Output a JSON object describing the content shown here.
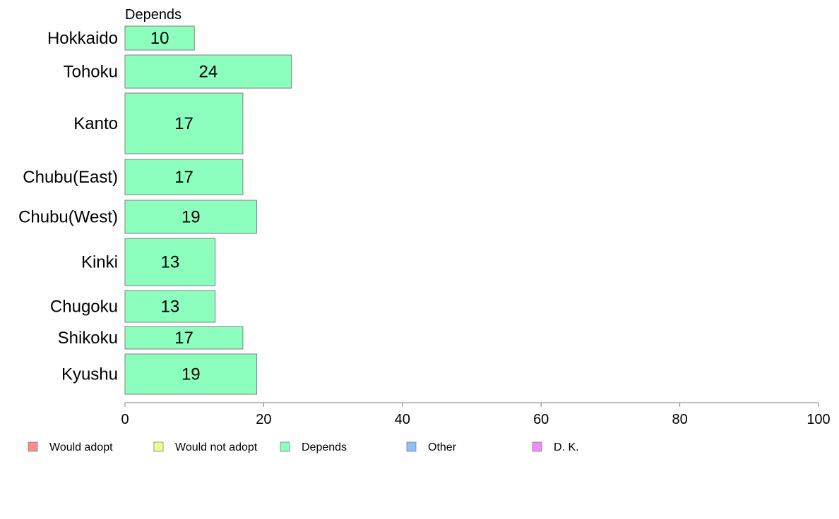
{
  "chart_data": {
    "type": "bar",
    "orientation": "horizontal",
    "series_header": "Depends",
    "categories": [
      "Hokkaido",
      "Tohoku",
      "Kanto",
      "Chubu(East)",
      "Chubu(West)",
      "Kinki",
      "Chugoku",
      "Shikoku",
      "Kyushu"
    ],
    "values": [
      10,
      24,
      17,
      17,
      19,
      13,
      13,
      17,
      19
    ],
    "data_labels": [
      "10",
      "24",
      "17",
      "17",
      "19",
      "13",
      "13",
      "17",
      "19"
    ],
    "bar_color": "#8cffbf",
    "bar_border_color": "#7f7f7f",
    "xlim": [
      0,
      100
    ],
    "xticks": [
      0,
      20,
      40,
      60,
      80,
      100
    ],
    "legend_position": "bottom",
    "legend": [
      {
        "label": "Would adopt",
        "color": "#ff8c8c"
      },
      {
        "label": "Would not adopt",
        "color": "#eeff8c"
      },
      {
        "label": "Depends",
        "color": "#8cffbf"
      },
      {
        "label": "Other",
        "color": "#8cbfff"
      },
      {
        "label": "D. K.",
        "color": "#ee8cff"
      }
    ]
  }
}
